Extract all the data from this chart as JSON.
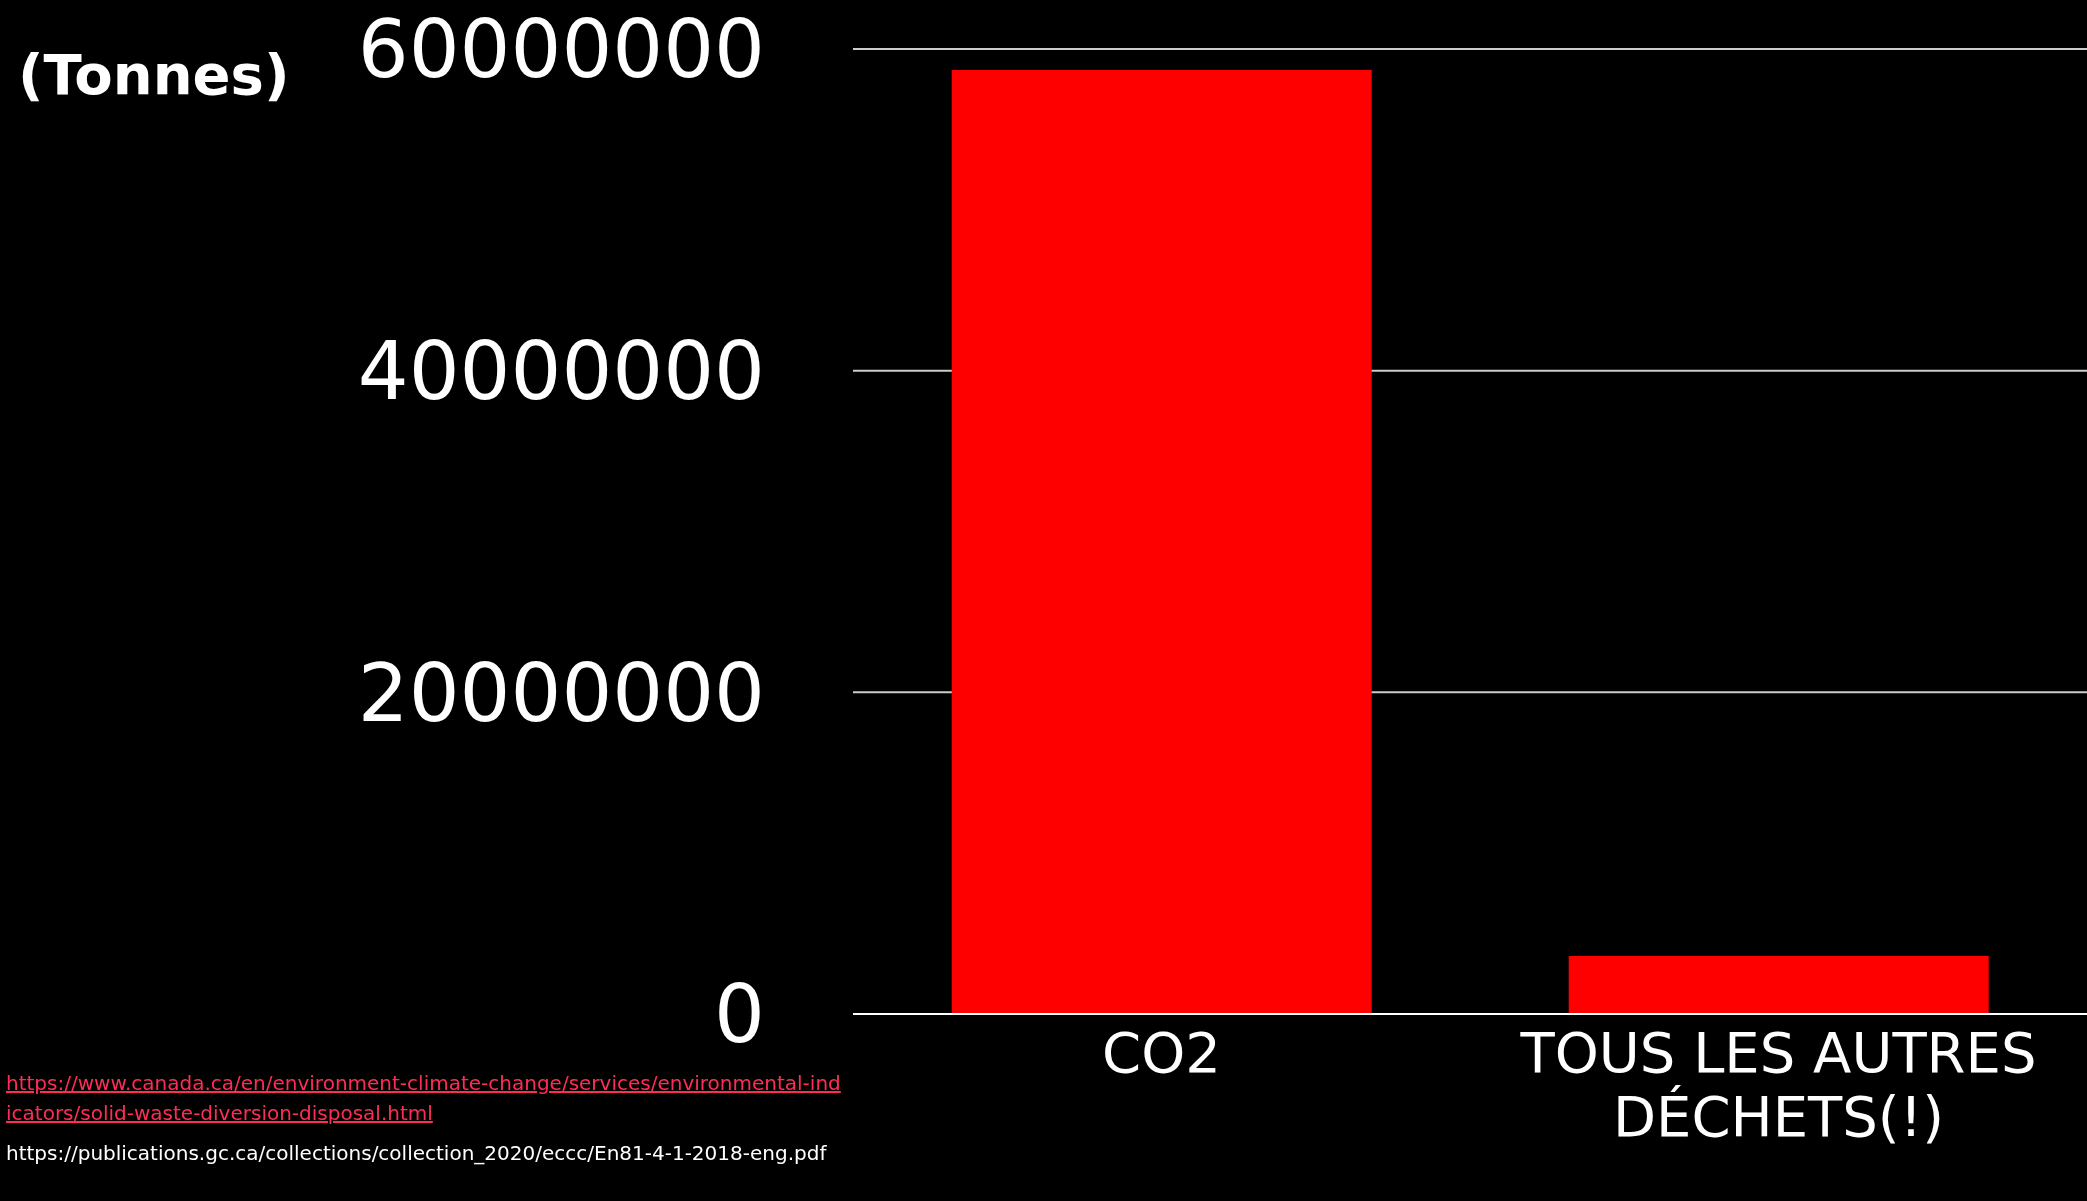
{
  "chart_data": {
    "type": "bar",
    "ylabel": "(Tonnes)",
    "categories": [
      "CO2",
      "TOUS LES AUTRES DÉCHETS(!)"
    ],
    "values": [
      58700000,
      3600000
    ],
    "color": "#ff0000",
    "ylim": [
      0,
      60000000
    ],
    "yticks": [
      0,
      20000000,
      40000000,
      60000000
    ],
    "grid": "y",
    "legend": false,
    "annotations": [
      "https://www.canada.ca/en/environment-climate-change/services/environmental-indicators/solid-waste-diversion-disposal.html",
      "https://publications.gc.ca/collections/collection_2020/eccc/En81-4-1-2018-eng.pdf"
    ]
  }
}
